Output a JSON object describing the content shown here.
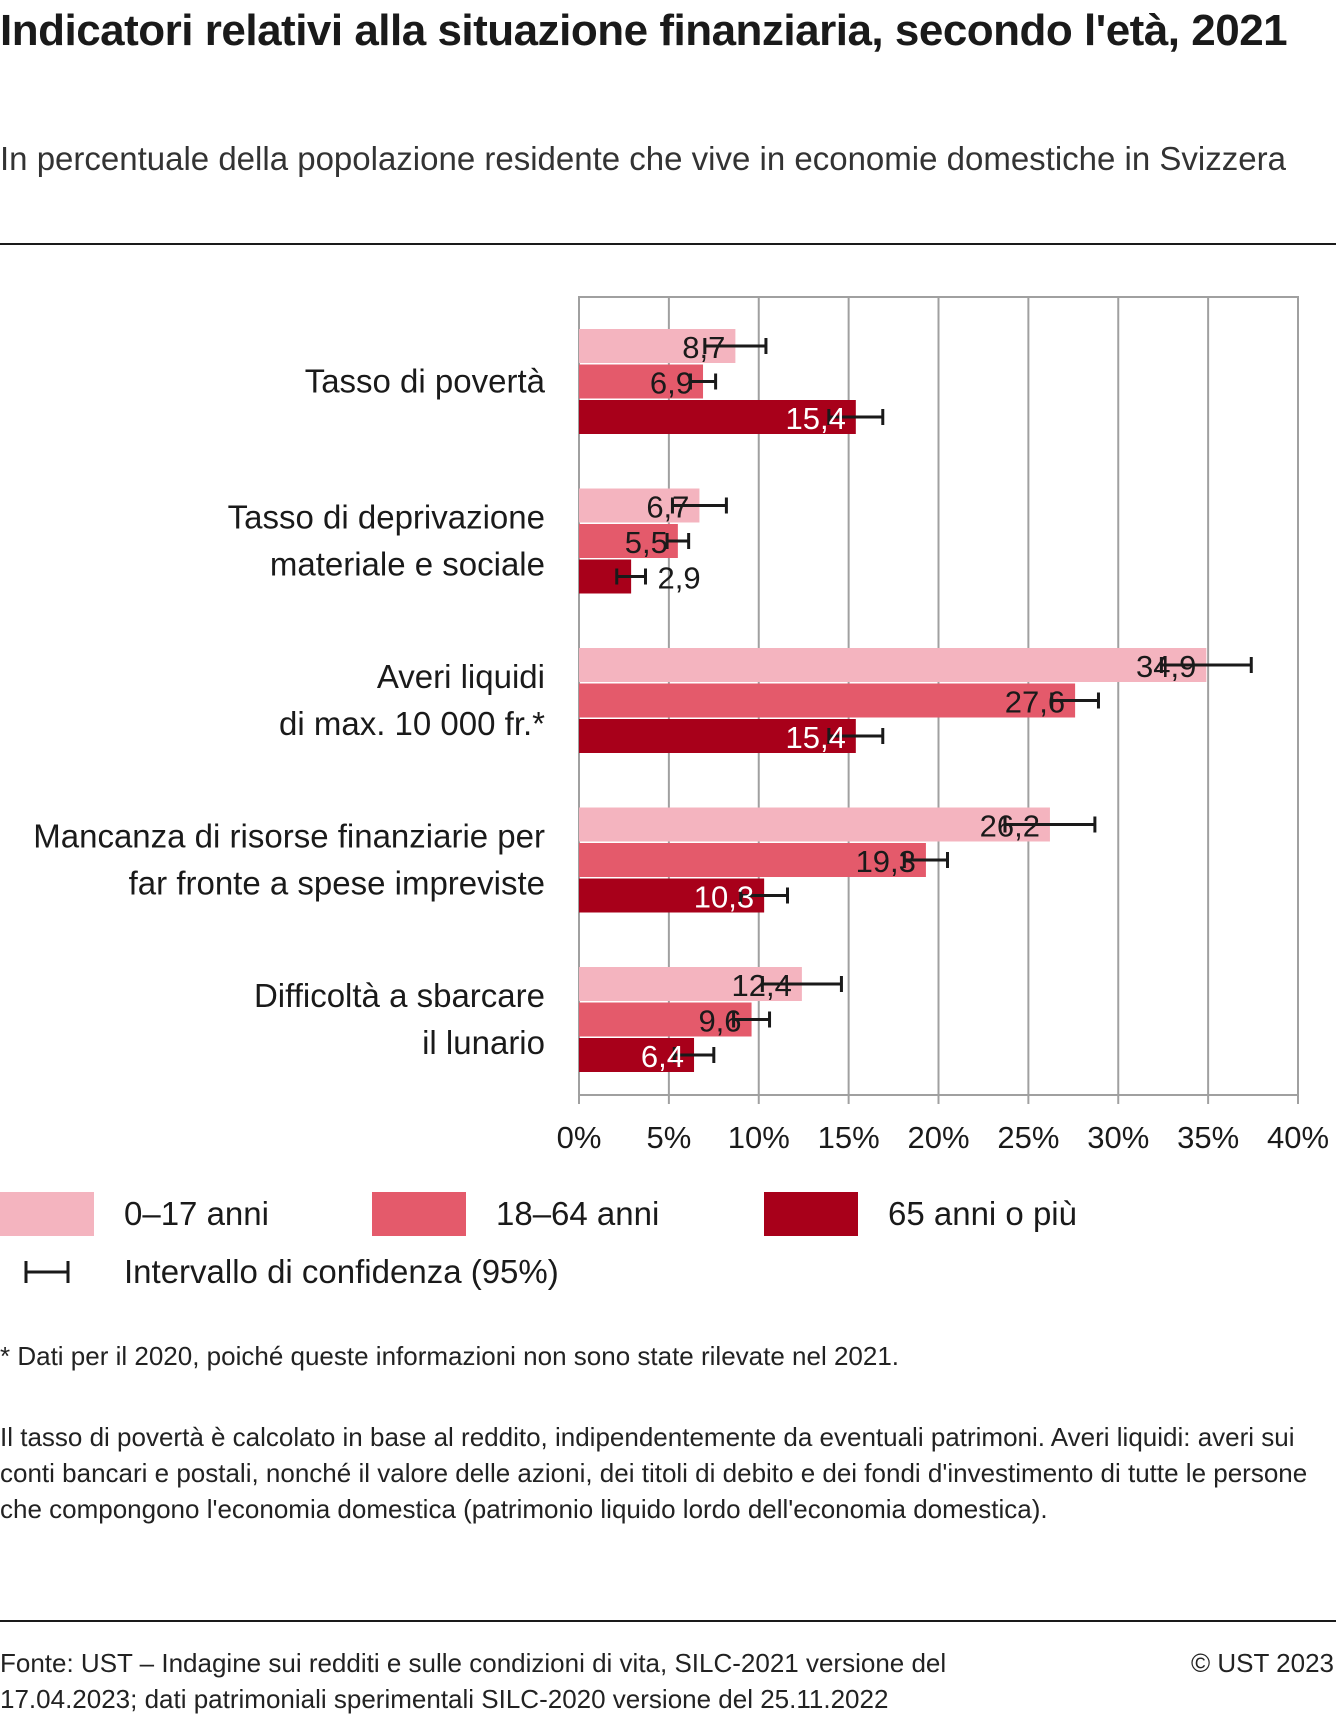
{
  "header": {
    "title": "Indicatori relativi alla situazione finanziaria, secondo l'età, 2021",
    "subtitle": "In percentuale della popolazione residente che vive in economie domestiche in Svizzera"
  },
  "colors": {
    "series_0_17": "#f4b4bf",
    "series_18_64": "#e45a6b",
    "series_65": "#a8001a",
    "grid": "#a0a0a0",
    "error_bar": "#1a1a1a"
  },
  "chart_data": {
    "type": "bar",
    "orientation": "horizontal",
    "categories": [
      "Tasso di povertà",
      "Tasso di deprivazione materiale e sociale",
      "Averi liquidi di max. 10 000 fr.*",
      "Mancanza di risorse finanziarie per far fronte a spese impreviste",
      "Difficoltà a sbarcare il lunario"
    ],
    "category_lines": [
      [
        "Tasso di povertà"
      ],
      [
        "Tasso di deprivazione",
        "materiale e sociale"
      ],
      [
        "Averi liquidi",
        "di max. 10 000 fr.*"
      ],
      [
        "Mancanza di risorse finanziarie per",
        "far fronte a spese impreviste"
      ],
      [
        "Difficoltà a sbarcare",
        "il lunario"
      ]
    ],
    "series": [
      {
        "name": "0–17 anni",
        "color": "#f4b4bf",
        "values": [
          8.7,
          6.7,
          34.9,
          26.2,
          12.4
        ],
        "value_labels": [
          "8,7",
          "6,7",
          "34,9",
          "26,2",
          "12,4"
        ],
        "ci_low": [
          7.0,
          5.2,
          32.4,
          23.7,
          10.2
        ],
        "ci_high": [
          10.4,
          8.2,
          37.4,
          28.7,
          14.6
        ]
      },
      {
        "name": "18–64 anni",
        "color": "#e45a6b",
        "values": [
          6.9,
          5.5,
          27.6,
          19.3,
          9.6
        ],
        "value_labels": [
          "6,9",
          "5,5",
          "27,6",
          "19,3",
          "9,6"
        ],
        "ci_low": [
          6.2,
          4.9,
          26.3,
          18.1,
          8.6
        ],
        "ci_high": [
          7.6,
          6.1,
          28.9,
          20.5,
          10.6
        ]
      },
      {
        "name": "65 anni o più",
        "color": "#a8001a",
        "values": [
          15.4,
          2.9,
          15.4,
          10.3,
          6.4
        ],
        "value_labels": [
          "15,4",
          "2,9",
          "15,4",
          "10,3",
          "6,4"
        ],
        "ci_low": [
          13.9,
          2.1,
          13.9,
          9.0,
          5.3
        ],
        "ci_high": [
          16.9,
          3.7,
          16.9,
          11.6,
          7.5
        ]
      }
    ],
    "xlim": [
      0,
      40
    ],
    "xticks": [
      0,
      5,
      10,
      15,
      20,
      25,
      30,
      35,
      40
    ],
    "xtick_labels": [
      "0%",
      "5%",
      "10%",
      "15%",
      "20%",
      "25%",
      "30%",
      "35%",
      "40%"
    ],
    "grid": true,
    "legend_position": "bottom"
  },
  "legend": {
    "items": [
      {
        "label": "0–17 anni",
        "color": "#f4b4bf"
      },
      {
        "label": "18–64 anni",
        "color": "#e45a6b"
      },
      {
        "label": "65 anni o più",
        "color": "#a8001a"
      }
    ],
    "ci_label": "Intervallo di confidenza (95%)"
  },
  "notes": {
    "footnote": "* Dati per il 2020, poiché queste informazioni non sono state rilevate nel 2021.",
    "explanation": "Il tasso di povertà è calcolato in base al reddito, indipendentemente da eventuali patrimoni. Averi liquidi: averi sui conti bancari e postali, nonché il valore delle azioni, dei titoli di debito e dei fondi d'investimento di tutte le persone che compongono l'economia domestica (patrimonio liquido lordo dell'economia domestica)."
  },
  "footer": {
    "source": "Fonte: UST – Indagine sui redditi e sulle condizioni di vita, SILC-2021 versione del 17.04.2023; dati patrimoniali sperimentali SILC-2020 versione del 25.11.2022",
    "copyright": "© UST 2023"
  }
}
